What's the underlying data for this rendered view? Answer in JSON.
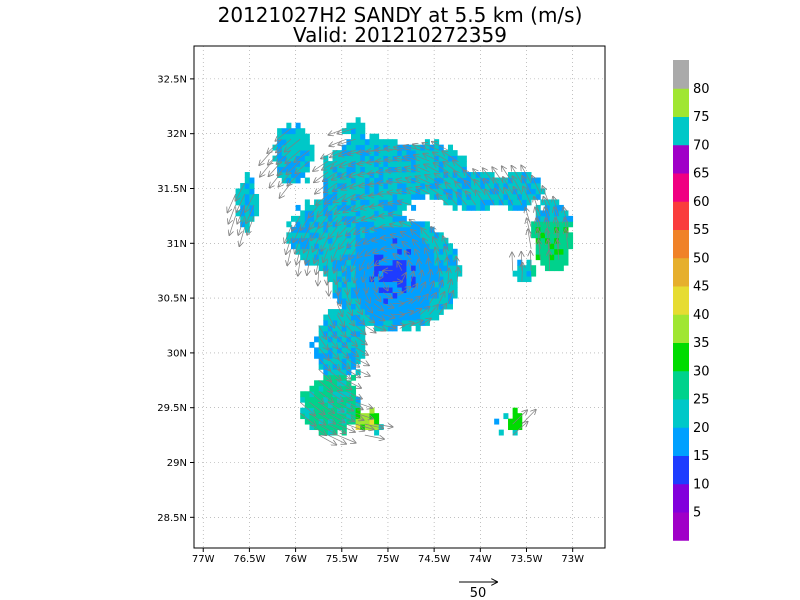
{
  "title": "20121027H2 SANDY at 5.5 km (m/s)",
  "subtitle": "Valid: 201210272359",
  "chart_data": {
    "type": "heatmap",
    "title": "20121027H2 SANDY at 5.5 km (m/s)",
    "subtitle": "Valid: 201210272359",
    "xlabel": "",
    "ylabel": "",
    "xlim": [
      -77.1,
      -72.65
    ],
    "ylim": [
      28.22,
      32.8
    ],
    "grid": true,
    "x_ticks": [
      {
        "v": -77,
        "label": "77W"
      },
      {
        "v": -76.5,
        "label": "76.5W"
      },
      {
        "v": -76,
        "label": "76W"
      },
      {
        "v": -75.5,
        "label": "75.5W"
      },
      {
        "v": -75,
        "label": "75W"
      },
      {
        "v": -74.5,
        "label": "74.5W"
      },
      {
        "v": -74,
        "label": "74W"
      },
      {
        "v": -73.5,
        "label": "73.5W"
      },
      {
        "v": -73,
        "label": "73W"
      }
    ],
    "y_ticks": [
      {
        "v": 28.5,
        "label": "28.5N"
      },
      {
        "v": 29,
        "label": "29N"
      },
      {
        "v": 29.5,
        "label": "29.5N"
      },
      {
        "v": 30,
        "label": "30N"
      },
      {
        "v": 30.5,
        "label": "30.5N"
      },
      {
        "v": 31,
        "label": "31N"
      },
      {
        "v": 31.5,
        "label": "31.5N"
      },
      {
        "v": 32,
        "label": "32N"
      },
      {
        "v": 32.5,
        "label": "32.5N"
      }
    ],
    "colorbar": {
      "levels": [
        5,
        10,
        15,
        20,
        25,
        30,
        35,
        40,
        45,
        50,
        55,
        60,
        65,
        70,
        75,
        80
      ],
      "labels": [
        "5",
        "10",
        "15",
        "20",
        "25",
        "30",
        "35",
        "40",
        "45",
        "50",
        "55",
        "60",
        "65",
        "70",
        "75",
        "80"
      ],
      "colors": [
        "#a000c8",
        "#8200dc",
        "#1e3cff",
        "#00a0ff",
        "#00c8c8",
        "#00d28c",
        "#00dc00",
        "#a0e632",
        "#e6dc32",
        "#e6af2d",
        "#f08228",
        "#fa3c3c",
        "#f00082",
        "#a000c8",
        "#00c8c8",
        "#a0e632",
        "#aaaaaa"
      ]
    },
    "wind_field": {
      "center": [
        -74.95,
        30.7
      ],
      "wind_range_ms": [
        5,
        32
      ],
      "rotation": "cyclonic",
      "outer_bands": [
        [
          -76.1,
          31.85
        ],
        [
          -75.35,
          31.95
        ],
        [
          -74.75,
          31.85
        ],
        [
          -74.0,
          31.55
        ],
        [
          -73.55,
          31.4
        ],
        [
          -73.15,
          30.9
        ],
        [
          -75.75,
          29.6
        ],
        [
          -75.5,
          29.2
        ]
      ]
    },
    "reference_vector": {
      "value": 50,
      "label": "50",
      "units": "m/s"
    }
  }
}
